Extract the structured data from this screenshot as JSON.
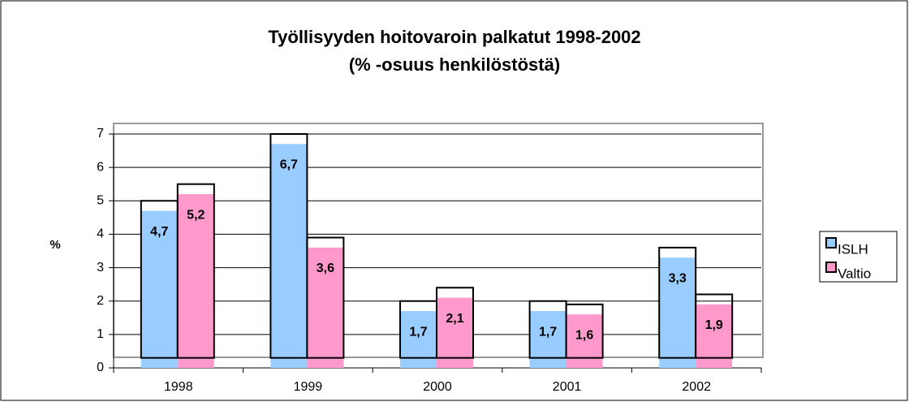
{
  "chart_data": {
    "type": "bar",
    "title": "Työllisyyden hoitovaroin palkatut 1998-2002",
    "subtitle": "(% -osuus henkilöstöstä)",
    "y_label": "%",
    "categories": [
      "1998",
      "1999",
      "2000",
      "2001",
      "2002"
    ],
    "series": [
      {
        "name": "ISLH",
        "color": "#99ccff",
        "values": [
          4.7,
          6.7,
          1.7,
          1.7,
          3.3
        ],
        "value_labels": [
          "4,7",
          "6,7",
          "1,7",
          "1,7",
          "3,3"
        ]
      },
      {
        "name": "Valtio",
        "color": "#ff99cc",
        "values": [
          5.2,
          3.6,
          2.1,
          1.6,
          1.9
        ],
        "value_labels": [
          "5,2",
          "3,6",
          "2,1",
          "1,6",
          "1,9"
        ]
      }
    ],
    "ylim": [
      0,
      7
    ],
    "yticks": [
      0,
      1,
      2,
      3,
      4,
      5,
      6,
      7
    ],
    "grid": true,
    "legend": "right"
  }
}
